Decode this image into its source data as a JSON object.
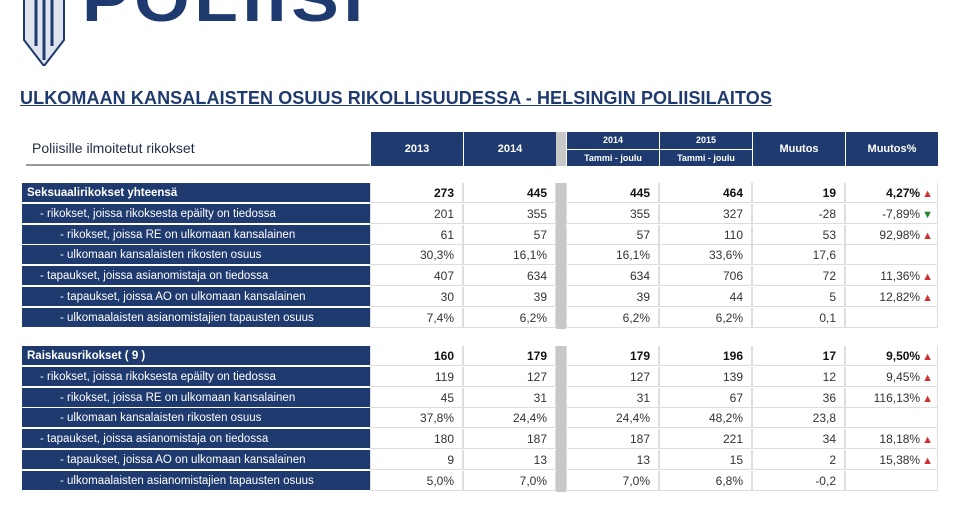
{
  "logo": {
    "text": "POLIISI"
  },
  "title": "ULKOMAAN KANSALAISTEN OSUUS RIKOLLISUUDESSA - HELSINGIN POLIISILAITOS",
  "header": {
    "label": "Poliisille ilmoitetut rikokset",
    "col2013": "2013",
    "col2014": "2014",
    "col2014tj_year": "2014",
    "col2014tj_sub": "Tammi - joulu",
    "col2015_year": "2015",
    "col2015_sub": "Tammi - joulu",
    "muutos": "Muutos",
    "muutos_pct": "Muutos%"
  },
  "colors": {
    "navy": "#1f3a6e",
    "up": "#d03030",
    "down": "#1e8a2e"
  },
  "sections": [
    {
      "rows": [
        {
          "label": "Seksuaalirikokset yhteensä",
          "indent": 0,
          "bold": true,
          "v": [
            "273",
            "445",
            "445",
            "464",
            "19",
            "4,27%"
          ],
          "trend": "up"
        },
        {
          "label": "- rikokset, joissa rikoksesta epäilty on tiedossa",
          "indent": 1,
          "v": [
            "201",
            "355",
            "355",
            "327",
            "-28",
            "-7,89%"
          ],
          "trend": "down"
        },
        {
          "label": "- rikokset, joissa RE on ulkomaan kansalainen",
          "indent": 2,
          "v": [
            "61",
            "57",
            "57",
            "110",
            "53",
            "92,98%"
          ],
          "trend": "up"
        },
        {
          "label": "- ulkomaan kansalaisten rikosten osuus",
          "indent": 2,
          "v": [
            "30,3%",
            "16,1%",
            "16,1%",
            "33,6%",
            "17,6",
            ""
          ],
          "trend": ""
        },
        {
          "label": "- tapaukset, joissa asianomistaja on tiedossa",
          "indent": 1,
          "v": [
            "407",
            "634",
            "634",
            "706",
            "72",
            "11,36%"
          ],
          "trend": "up"
        },
        {
          "label": "- tapaukset, joissa AO on ulkomaan kansalainen",
          "indent": 2,
          "v": [
            "30",
            "39",
            "39",
            "44",
            "5",
            "12,82%"
          ],
          "trend": "up"
        },
        {
          "label": "- ulkomaalaisten asianomistajien tapausten osuus",
          "indent": 2,
          "v": [
            "7,4%",
            "6,2%",
            "6,2%",
            "6,2%",
            "0,1",
            ""
          ],
          "trend": ""
        }
      ]
    },
    {
      "rows": [
        {
          "label": "Raiskausrikokset   ( 9 )",
          "indent": 0,
          "bold": true,
          "v": [
            "160",
            "179",
            "179",
            "196",
            "17",
            "9,50%"
          ],
          "trend": "up"
        },
        {
          "label": "- rikokset, joissa rikoksesta epäilty on tiedossa",
          "indent": 1,
          "v": [
            "119",
            "127",
            "127",
            "139",
            "12",
            "9,45%"
          ],
          "trend": "up"
        },
        {
          "label": "- rikokset, joissa RE on ulkomaan kansalainen",
          "indent": 2,
          "v": [
            "45",
            "31",
            "31",
            "67",
            "36",
            "116,13%"
          ],
          "trend": "up"
        },
        {
          "label": "- ulkomaan kansalaisten rikosten osuus",
          "indent": 2,
          "v": [
            "37,8%",
            "24,4%",
            "24,4%",
            "48,2%",
            "23,8",
            ""
          ],
          "trend": ""
        },
        {
          "label": "- tapaukset, joissa asianomistaja on tiedossa",
          "indent": 1,
          "v": [
            "180",
            "187",
            "187",
            "221",
            "34",
            "18,18%"
          ],
          "trend": "up"
        },
        {
          "label": "- tapaukset, joissa AO on ulkomaan kansalainen",
          "indent": 2,
          "v": [
            "9",
            "13",
            "13",
            "15",
            "2",
            "15,38%"
          ],
          "trend": "up"
        },
        {
          "label": "- ulkomaalaisten asianomistajien tapausten osuus",
          "indent": 2,
          "v": [
            "5,0%",
            "7,0%",
            "7,0%",
            "6,8%",
            "-0,2",
            ""
          ],
          "trend": ""
        }
      ]
    }
  ]
}
